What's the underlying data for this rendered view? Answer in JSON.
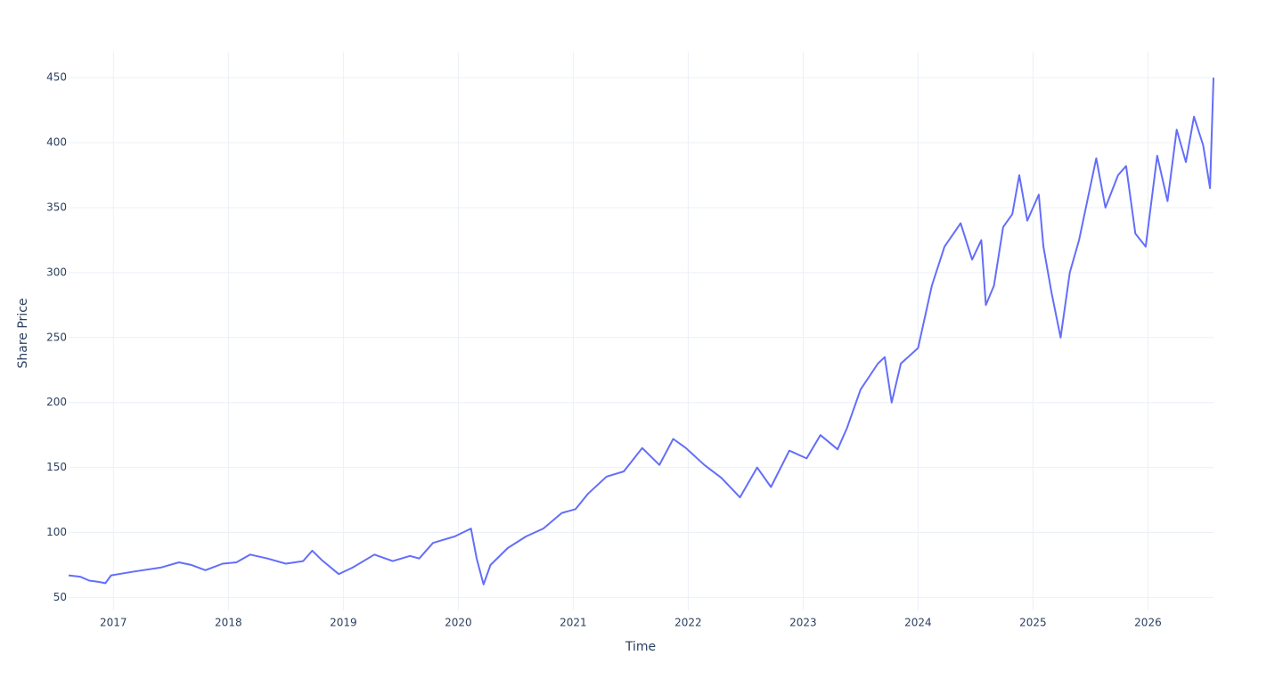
{
  "chart_data": {
    "type": "line",
    "x_label": "Time",
    "y_label": "Share Price",
    "x": [
      2016.61,
      2016.71,
      2016.79,
      2016.87,
      2016.93,
      2016.98,
      2017.18,
      2017.41,
      2017.57,
      2017.68,
      2017.8,
      2017.95,
      2018.07,
      2018.19,
      2018.34,
      2018.5,
      2018.65,
      2018.73,
      2018.81,
      2018.96,
      2019.08,
      2019.27,
      2019.43,
      2019.58,
      2019.66,
      2019.78,
      2019.97,
      2020.11,
      2020.16,
      2020.22,
      2020.28,
      2020.43,
      2020.59,
      2020.74,
      2020.9,
      2021.02,
      2021.13,
      2021.29,
      2021.44,
      2021.6,
      2021.75,
      2021.87,
      2021.98,
      2022.14,
      2022.29,
      2022.45,
      2022.6,
      2022.72,
      2022.88,
      2023.03,
      2023.15,
      2023.3,
      2023.38,
      2023.5,
      2023.65,
      2023.71,
      2023.77,
      2023.85,
      2024.0,
      2024.12,
      2024.23,
      2024.37,
      2024.47,
      2024.55,
      2024.59,
      2024.66,
      2024.74,
      2024.82,
      2024.88,
      2024.95,
      2025.05,
      2025.09,
      2025.16,
      2025.24,
      2025.32,
      2025.4,
      2025.55,
      2025.63,
      2025.74,
      2025.81,
      2025.89,
      2025.98,
      2026.08,
      2026.17,
      2026.25,
      2026.33,
      2026.4,
      2026.48,
      2026.54,
      2026.57
    ],
    "series": [
      {
        "name": "Share Price",
        "color": "#636efa",
        "values": [
          67,
          66,
          63,
          62,
          61,
          67,
          70,
          73,
          77,
          75,
          71,
          76,
          77,
          83,
          80,
          76,
          78,
          86,
          79,
          68,
          73,
          83,
          78,
          82,
          80,
          92,
          97,
          103,
          80,
          60,
          75,
          88,
          97,
          103,
          115,
          118,
          130,
          143,
          147,
          165,
          152,
          172,
          165,
          152,
          142,
          127,
          150,
          135,
          163,
          157,
          175,
          164,
          180,
          210,
          230,
          235,
          200,
          230,
          242,
          290,
          320,
          338,
          310,
          325,
          275,
          290,
          335,
          345,
          375,
          340,
          360,
          320,
          285,
          250,
          300,
          325,
          388,
          350,
          375,
          382,
          330,
          320,
          390,
          355,
          410,
          385,
          420,
          398,
          365,
          450
        ]
      }
    ],
    "xlim": [
      2016.61,
      2026.57
    ],
    "xticks": [
      2017,
      2018,
      2019,
      2020,
      2021,
      2022,
      2023,
      2024,
      2025,
      2026
    ],
    "ylim": [
      40,
      470
    ],
    "yticks": [
      50,
      100,
      150,
      200,
      250,
      300,
      350,
      400,
      450
    ],
    "grid": true
  }
}
